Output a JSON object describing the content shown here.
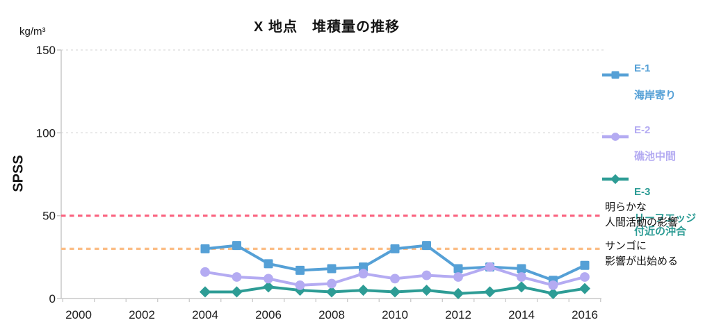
{
  "title": "X 地点　堆積量の推移",
  "y_axis": {
    "unit": "kg/m³",
    "label": "SPSS",
    "ticks": [
      "0",
      "50",
      "100",
      "150"
    ]
  },
  "x_axis": {
    "tick_labels": [
      "2000",
      "2002",
      "2004",
      "2006",
      "2008",
      "2010",
      "2012",
      "2014",
      "2016"
    ]
  },
  "legend": {
    "items": [
      {
        "name": "E-1",
        "desc": "海岸寄り",
        "color": "#55a0d6",
        "marker": "square"
      },
      {
        "name": "E-2",
        "desc": "礁池中間",
        "color": "#b4abf2",
        "marker": "circle"
      },
      {
        "name": "E-3",
        "desc": "リーフエッジ\n付近の沖合",
        "color": "#2d9c95",
        "marker": "diamond"
      }
    ]
  },
  "annotations": [
    {
      "text": "明らかな\n人間活動の影響",
      "value": 50,
      "color": "#fa607e"
    },
    {
      "text": "サンゴに\n影響が出始める",
      "value": 30,
      "color": "#fbbd85"
    }
  ],
  "chart_data": {
    "type": "line",
    "title": "X 地点　堆積量の推移",
    "ylabel": "SPSS",
    "y_unit": "kg/m³",
    "xlabel": "",
    "x": [
      2004,
      2005,
      2006,
      2007,
      2008,
      2009,
      2010,
      2011,
      2012,
      2013,
      2014,
      2015,
      2016
    ],
    "x_tick_years": [
      2000,
      2002,
      2004,
      2006,
      2008,
      2010,
      2012,
      2014,
      2016
    ],
    "xlim": [
      1999.5,
      2016.5
    ],
    "ylim": [
      0,
      150
    ],
    "y_ticks": [
      0,
      50,
      100,
      150
    ],
    "grid_y_dashed": [
      100,
      150
    ],
    "legend_position": "right",
    "series": [
      {
        "name": "E-1 海岸寄り",
        "marker": "square",
        "color": "#55a0d6",
        "values": [
          30,
          32,
          21,
          17,
          18,
          19,
          30,
          32,
          18,
          19,
          18,
          11,
          20
        ]
      },
      {
        "name": "E-2 礁池中間",
        "marker": "circle",
        "color": "#b4abf2",
        "values": [
          16,
          13,
          12,
          8,
          9,
          15,
          12,
          14,
          13,
          19,
          13,
          8,
          13
        ]
      },
      {
        "name": "E-3 リーフエッジ付近の沖合",
        "marker": "diamond",
        "color": "#2d9c95",
        "values": [
          4,
          4,
          7,
          5,
          4,
          5,
          4,
          5,
          3,
          4,
          7,
          3,
          6
        ]
      }
    ],
    "reference_lines": [
      {
        "y": 50,
        "color": "#fa607e",
        "style": "dashed",
        "label": "明らかな人間活動の影響"
      },
      {
        "y": 30,
        "color": "#fbbd85",
        "style": "dashed",
        "label": "サンゴに影響が出始める"
      }
    ]
  }
}
